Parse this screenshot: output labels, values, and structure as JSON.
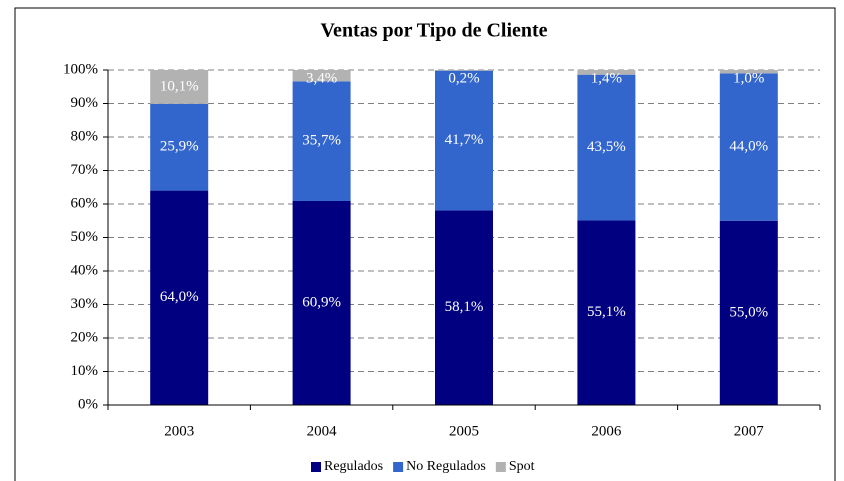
{
  "chart_data": {
    "type": "stacked_bar",
    "title": "Ventas por Tipo de Cliente",
    "categories": [
      "2003",
      "2004",
      "2005",
      "2006",
      "2007"
    ],
    "series": [
      {
        "name": "Regulados",
        "color": "#000080",
        "values": [
          64.0,
          60.9,
          58.1,
          55.1,
          55.0
        ],
        "value_labels": [
          "64,0%",
          "60,9%",
          "58,1%",
          "55,1%",
          "55,0%"
        ]
      },
      {
        "name": "No Regulados",
        "color": "#3366cc",
        "values": [
          25.9,
          35.7,
          41.7,
          43.5,
          44.0
        ],
        "value_labels": [
          "25,9%",
          "35,7%",
          "41,7%",
          "43,5%",
          "44,0%"
        ]
      },
      {
        "name": "Spot",
        "color": "#b2b2b2",
        "values": [
          10.1,
          3.4,
          0.2,
          1.4,
          1.0
        ],
        "value_labels": [
          "10,1%",
          "3,4%",
          "0,2%",
          "1,4%",
          "1,0%"
        ]
      }
    ],
    "ylim": [
      0,
      100
    ],
    "yticks": [
      {
        "value": 0,
        "label": "0%"
      },
      {
        "value": 10,
        "label": "10%"
      },
      {
        "value": 20,
        "label": "20%"
      },
      {
        "value": 30,
        "label": "30%"
      },
      {
        "value": 40,
        "label": "40%"
      },
      {
        "value": 50,
        "label": "50%"
      },
      {
        "value": 60,
        "label": "60%"
      },
      {
        "value": 70,
        "label": "70%"
      },
      {
        "value": 80,
        "label": "80%"
      },
      {
        "value": 90,
        "label": "90%"
      },
      {
        "value": 100,
        "label": "100%"
      }
    ],
    "grid": true,
    "legend": "bottom"
  }
}
